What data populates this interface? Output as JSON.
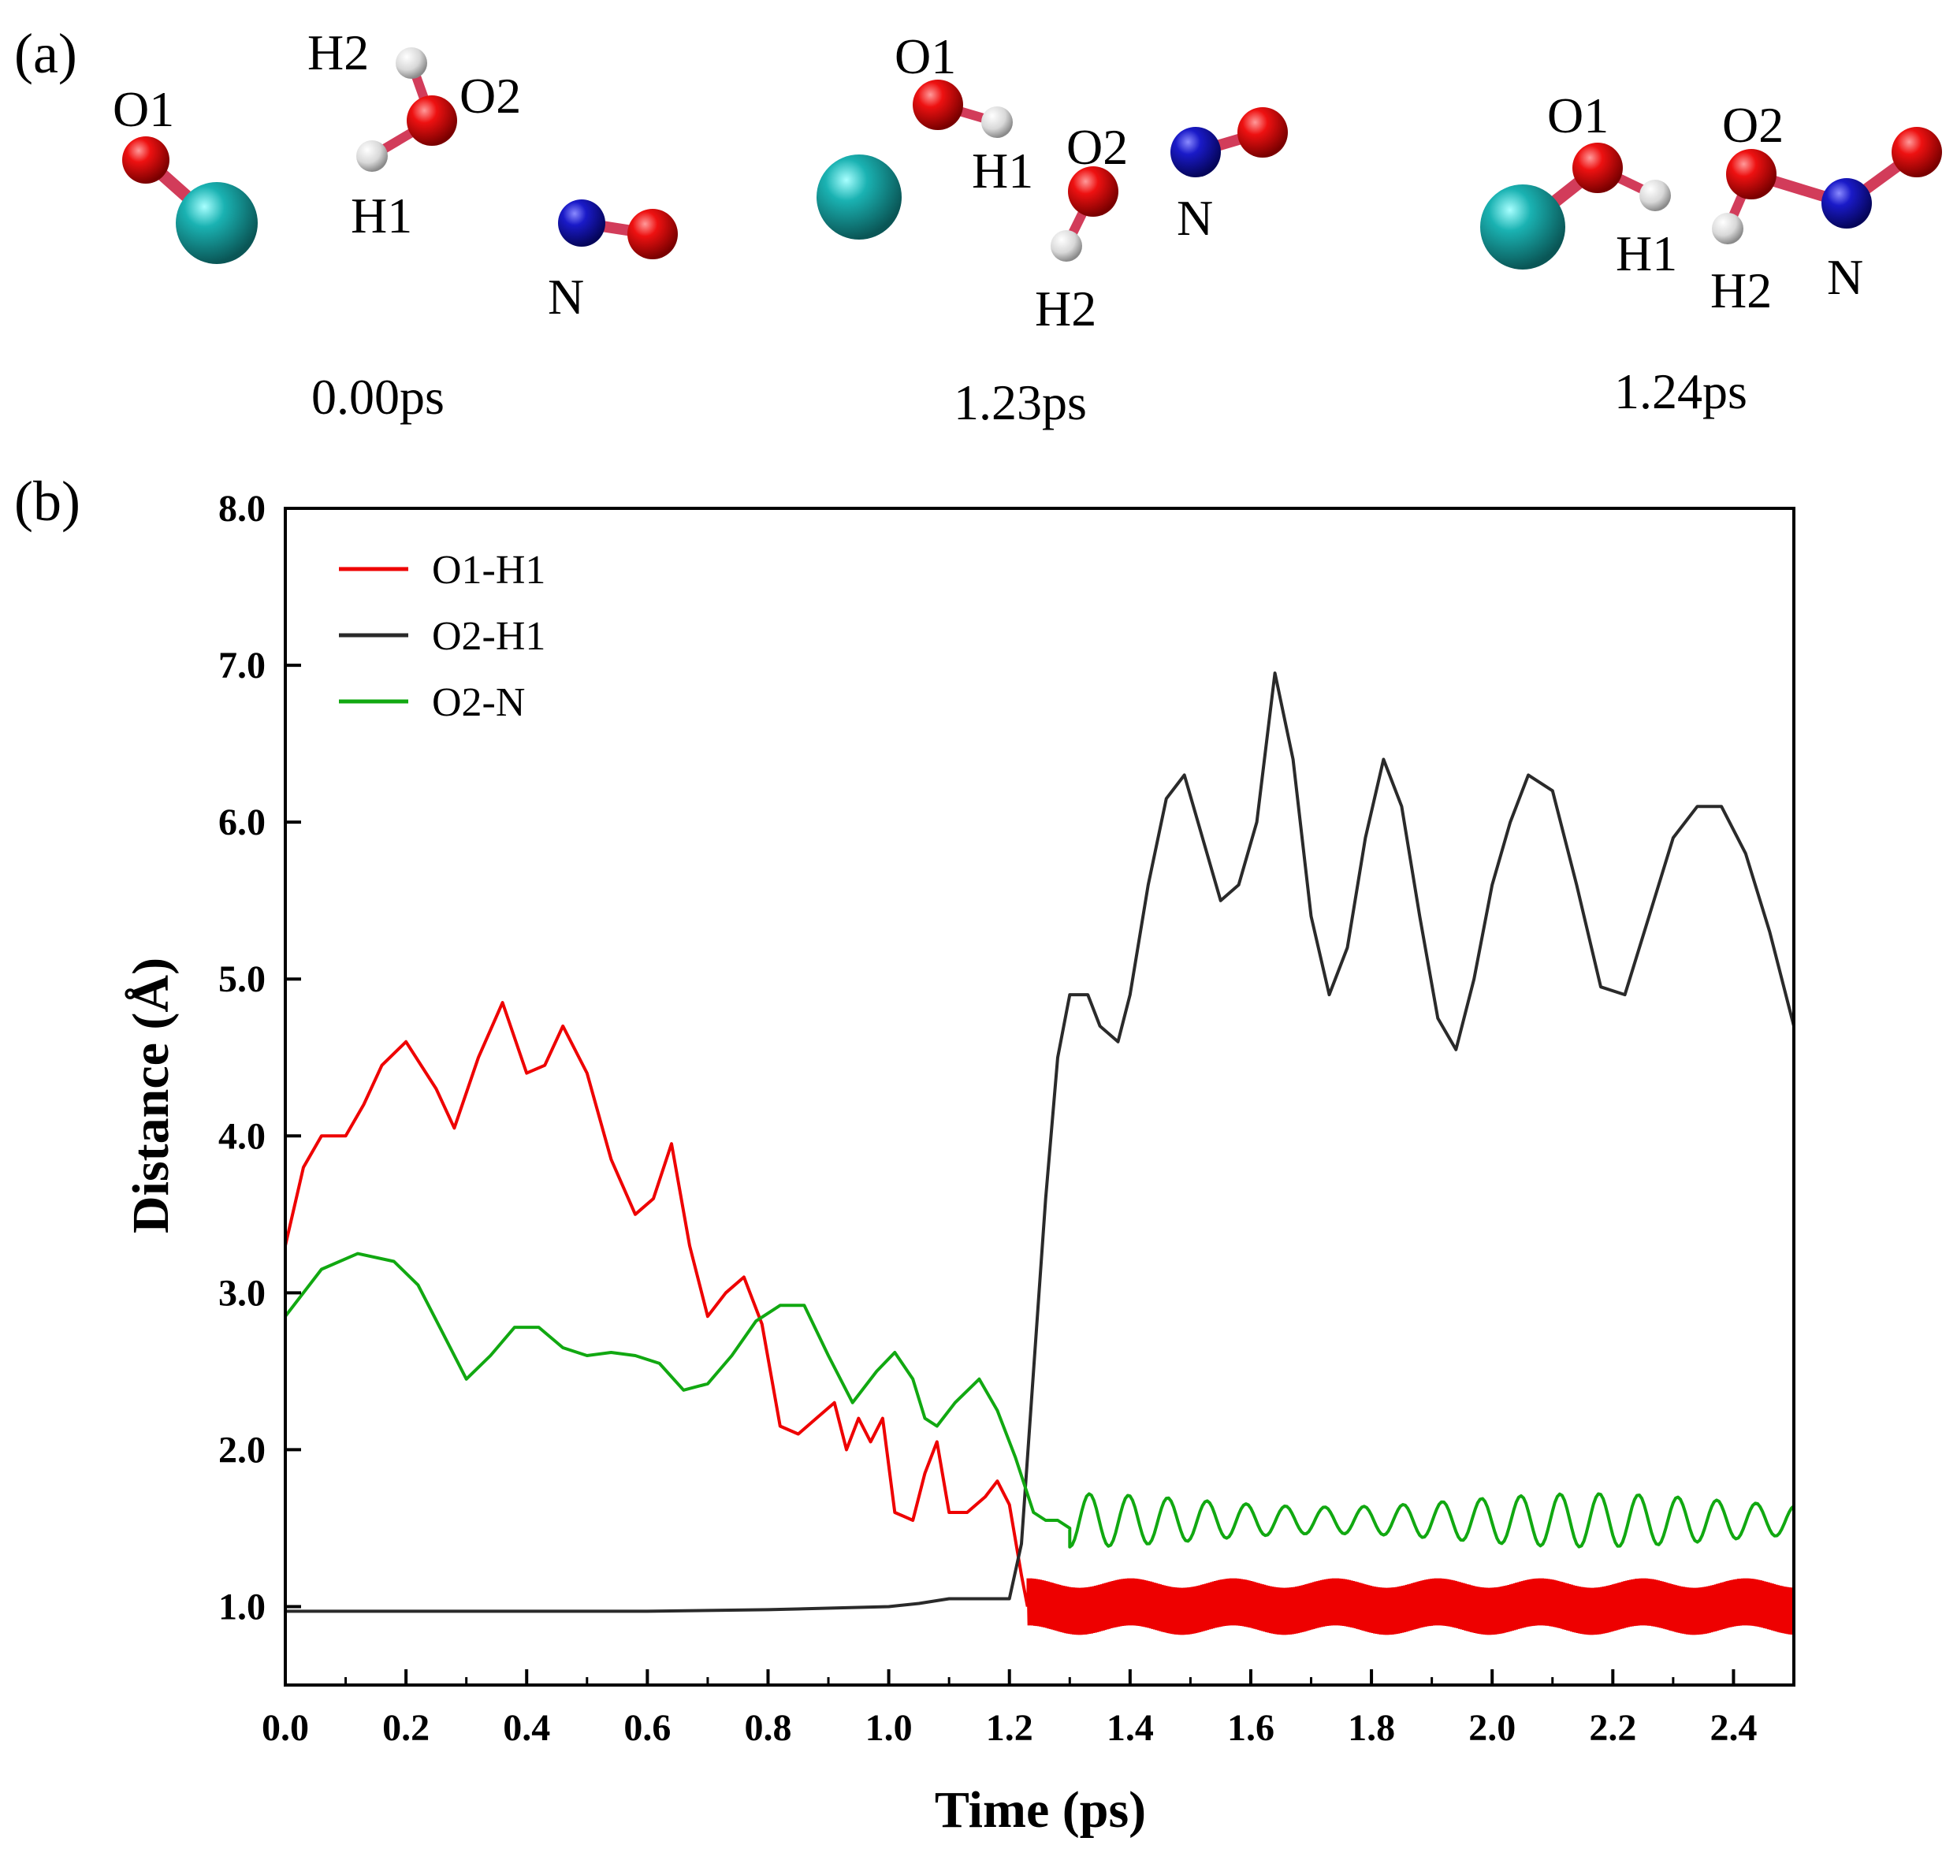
{
  "panel_a": {
    "label": "(a)",
    "snapshots": [
      {
        "time": "0.00ps",
        "labels": [
          "O1",
          "H2",
          "O2",
          "H1",
          "N"
        ]
      },
      {
        "time": "1.23ps",
        "labels": [
          "O1",
          "H1",
          "O2",
          "H2",
          "N"
        ]
      },
      {
        "time": "1.24ps",
        "labels": [
          "O1",
          "O2",
          "H1",
          "H2",
          "N"
        ]
      }
    ],
    "colors": {
      "oxygen": "#e01010",
      "hydrogen": "#e0e0e0",
      "nitrogen": "#1a1ab8",
      "metal": "#18a8a8",
      "bond": "#d23c5a"
    }
  },
  "chart_data": {
    "panel_label": "(b)",
    "type": "line",
    "xlabel": "Time (ps)",
    "ylabel": "Distance (Å)",
    "xlim": [
      0.0,
      2.5
    ],
    "ylim": [
      0.5,
      8.0
    ],
    "xticks": [
      "0.0",
      "0.2",
      "0.4",
      "0.6",
      "0.8",
      "1.0",
      "1.2",
      "1.4",
      "1.6",
      "1.8",
      "2.0",
      "2.2",
      "2.4"
    ],
    "yticks": [
      "1.0",
      "2.0",
      "3.0",
      "4.0",
      "5.0",
      "6.0",
      "7.0",
      "8.0"
    ],
    "legend_position": "top-left",
    "series": [
      {
        "name": "O1-H1",
        "color": "#ee0000",
        "x": [
          0.0,
          0.03,
          0.06,
          0.1,
          0.13,
          0.16,
          0.2,
          0.25,
          0.28,
          0.32,
          0.36,
          0.4,
          0.43,
          0.46,
          0.5,
          0.54,
          0.58,
          0.61,
          0.64,
          0.67,
          0.7,
          0.73,
          0.76,
          0.79,
          0.82,
          0.85,
          0.88,
          0.91,
          0.93,
          0.95,
          0.97,
          0.99,
          1.01,
          1.04,
          1.06,
          1.08,
          1.1,
          1.13,
          1.16,
          1.18,
          1.2,
          1.22,
          1.23
        ],
        "y": [
          3.3,
          3.8,
          4.0,
          4.0,
          4.2,
          4.45,
          4.6,
          4.3,
          4.05,
          4.5,
          4.85,
          4.4,
          4.45,
          4.7,
          4.4,
          3.85,
          3.5,
          3.6,
          3.95,
          3.3,
          2.85,
          3.0,
          3.1,
          2.8,
          2.15,
          2.1,
          2.2,
          2.3,
          2.0,
          2.2,
          2.05,
          2.2,
          1.6,
          1.55,
          1.85,
          2.05,
          1.6,
          1.6,
          1.7,
          1.8,
          1.65,
          1.2,
          1.0
        ],
        "oscillation": {
          "from": 1.23,
          "to": 2.5,
          "center": 1.0,
          "half_amplitude": 0.15
        }
      },
      {
        "name": "O2-H1",
        "color": "#2a2a2a",
        "x": [
          0.0,
          0.2,
          0.4,
          0.6,
          0.8,
          1.0,
          1.05,
          1.1,
          1.15,
          1.2,
          1.22,
          1.24,
          1.26,
          1.28,
          1.3,
          1.33,
          1.35,
          1.38,
          1.4,
          1.43,
          1.46,
          1.49,
          1.52,
          1.55,
          1.58,
          1.61,
          1.64,
          1.67,
          1.7,
          1.73,
          1.76,
          1.79,
          1.82,
          1.85,
          1.88,
          1.91,
          1.94,
          1.97,
          2.0,
          2.03,
          2.06,
          2.1,
          2.14,
          2.18,
          2.22,
          2.26,
          2.3,
          2.34,
          2.38,
          2.42,
          2.46,
          2.5
        ],
        "y": [
          0.97,
          0.97,
          0.97,
          0.97,
          0.98,
          1.0,
          1.02,
          1.05,
          1.05,
          1.05,
          1.4,
          2.5,
          3.6,
          4.5,
          4.9,
          4.9,
          4.7,
          4.6,
          4.9,
          5.6,
          6.15,
          6.3,
          5.9,
          5.5,
          5.6,
          6.0,
          6.95,
          6.4,
          5.4,
          4.9,
          5.2,
          5.9,
          6.4,
          6.1,
          5.4,
          4.75,
          4.55,
          5.0,
          5.6,
          6.0,
          6.3,
          6.2,
          5.6,
          4.95,
          4.9,
          5.4,
          5.9,
          6.1,
          6.1,
          5.8,
          5.3,
          4.7
        ]
      },
      {
        "name": "O2-N",
        "color": "#11a811",
        "x": [
          0.0,
          0.06,
          0.12,
          0.18,
          0.22,
          0.26,
          0.3,
          0.34,
          0.38,
          0.42,
          0.46,
          0.5,
          0.54,
          0.58,
          0.62,
          0.66,
          0.7,
          0.74,
          0.78,
          0.82,
          0.86,
          0.9,
          0.94,
          0.98,
          1.01,
          1.04,
          1.06,
          1.08,
          1.11,
          1.15,
          1.18,
          1.21,
          1.24,
          1.26,
          1.28,
          1.3
        ],
        "y": [
          2.85,
          3.15,
          3.25,
          3.2,
          3.05,
          2.75,
          2.45,
          2.6,
          2.78,
          2.78,
          2.65,
          2.6,
          2.62,
          2.6,
          2.55,
          2.38,
          2.42,
          2.6,
          2.82,
          2.92,
          2.92,
          2.6,
          2.3,
          2.5,
          2.62,
          2.45,
          2.2,
          2.15,
          2.3,
          2.45,
          2.25,
          1.95,
          1.6,
          1.55,
          1.55,
          1.5
        ],
        "oscillation": {
          "from": 1.3,
          "to": 2.5,
          "center": 1.55,
          "half_amplitude": 0.17,
          "period": 0.065
        }
      }
    ]
  }
}
